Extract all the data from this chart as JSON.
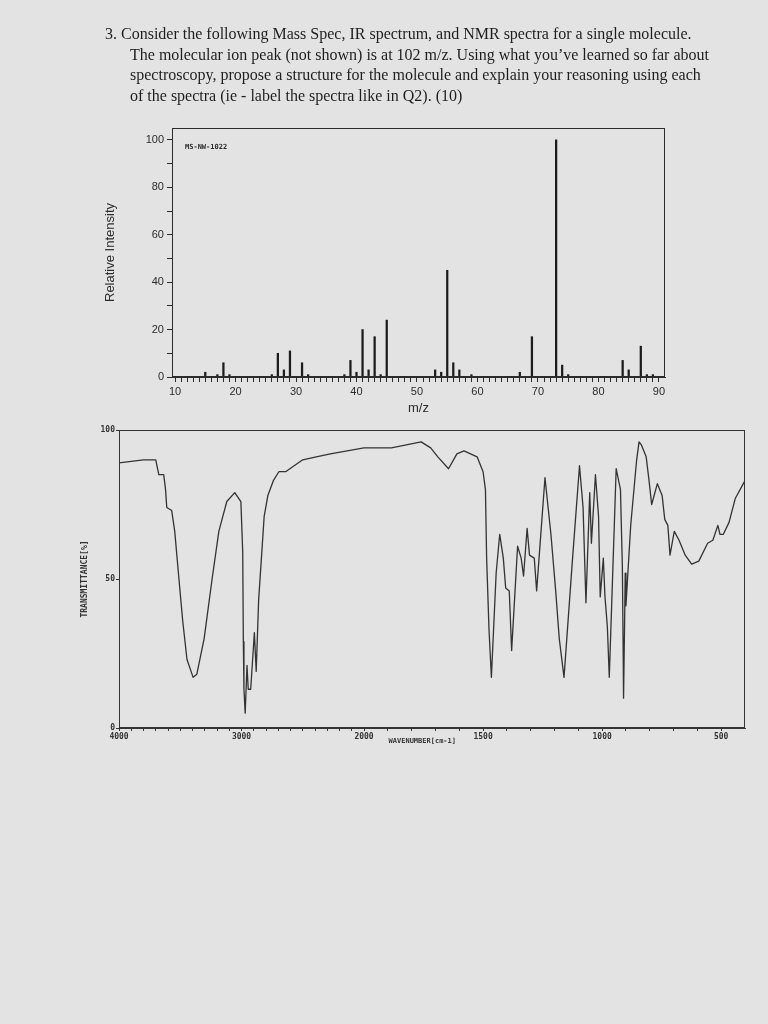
{
  "chart_data": [
    {
      "type": "bar",
      "title": "3. Consider the following Mass Spec, IR spectrum, and NMR spectra for a single molecule. The molecular ion peak (not shown) is at 102 m/z. Using what you’ve learned so far about spectroscopy, propose a structure for the molecule and explain your reasoning using each of the spectra (ie - label the spectra like in Q2). (10)",
      "annotations": [
        "MS-NW-1022"
      ],
      "xlabel": "m/z",
      "ylabel": "Relative Intensity",
      "color": "#1c1c1c",
      "x": [
        15,
        17,
        18,
        19,
        26,
        27,
        28,
        29,
        31,
        32,
        38,
        39,
        40,
        41,
        42,
        43,
        44,
        45,
        53,
        54,
        55,
        56,
        57,
        59,
        67,
        69,
        73,
        74,
        75,
        84,
        85,
        87,
        88,
        89
      ],
      "values": [
        2,
        1,
        6,
        1,
        1,
        10,
        3,
        11,
        6,
        1,
        1,
        7,
        2,
        20,
        3,
        17,
        1,
        24,
        3,
        2,
        45,
        6,
        3,
        1,
        2,
        17,
        100,
        5,
        1,
        7,
        3,
        13,
        1,
        1
      ],
      "xlim": [
        9.5,
        91
      ],
      "xticks": [
        10,
        {
          "value": 11,
          "label": null
        },
        {
          "value": 12,
          "label": null
        },
        {
          "value": 13,
          "label": null
        },
        {
          "value": 14,
          "label": null
        },
        {
          "value": 15,
          "label": null
        },
        {
          "value": 16,
          "label": null
        },
        {
          "value": 17,
          "label": null
        },
        {
          "value": 18,
          "label": null
        },
        {
          "value": 19,
          "label": null
        },
        20,
        {
          "value": 21,
          "label": null
        },
        {
          "value": 22,
          "label": null
        },
        {
          "value": 23,
          "label": null
        },
        {
          "value": 24,
          "label": null
        },
        {
          "value": 25,
          "label": null
        },
        {
          "value": 26,
          "label": null
        },
        {
          "value": 27,
          "label": null
        },
        {
          "value": 28,
          "label": null
        },
        {
          "value": 29,
          "label": null
        },
        30,
        {
          "value": 31,
          "label": null
        },
        {
          "value": 32,
          "label": null
        },
        {
          "value": 33,
          "label": null
        },
        {
          "value": 34,
          "label": null
        },
        {
          "value": 35,
          "label": null
        },
        {
          "value": 36,
          "label": null
        },
        {
          "value": 37,
          "label": null
        },
        {
          "value": 38,
          "label": null
        },
        {
          "value": 39,
          "label": null
        },
        40,
        {
          "value": 41,
          "label": null
        },
        {
          "value": 42,
          "label": null
        },
        {
          "value": 43,
          "label": null
        },
        {
          "value": 44,
          "label": null
        },
        {
          "value": 45,
          "label": null
        },
        {
          "value": 46,
          "label": null
        },
        {
          "value": 47,
          "label": null
        },
        {
          "value": 48,
          "label": null
        },
        {
          "value": 49,
          "label": null
        },
        50,
        {
          "value": 51,
          "label": null
        },
        {
          "value": 52,
          "label": null
        },
        {
          "value": 53,
          "label": null
        },
        {
          "value": 54,
          "label": null
        },
        {
          "value": 55,
          "label": null
        },
        {
          "value": 56,
          "label": null
        },
        {
          "value": 57,
          "label": null
        },
        {
          "value": 58,
          "label": null
        },
        {
          "value": 59,
          "label": null
        },
        60,
        {
          "value": 61,
          "label": null
        },
        {
          "value": 62,
          "label": null
        },
        {
          "value": 63,
          "label": null
        },
        {
          "value": 64,
          "label": null
        },
        {
          "value": 65,
          "label": null
        },
        {
          "value": 66,
          "label": null
        },
        {
          "value": 67,
          "label": null
        },
        {
          "value": 68,
          "label": null
        },
        {
          "value": 69,
          "label": null
        },
        70,
        {
          "value": 71,
          "label": null
        },
        {
          "value": 72,
          "label": null
        },
        {
          "value": 73,
          "label": null
        },
        {
          "value": 74,
          "label": null
        },
        {
          "value": 75,
          "label": null
        },
        {
          "value": 76,
          "label": null
        },
        {
          "value": 77,
          "label": null
        },
        {
          "value": 78,
          "label": null
        },
        {
          "value": 79,
          "label": null
        },
        80,
        {
          "value": 81,
          "label": null
        },
        {
          "value": 82,
          "label": null
        },
        {
          "value": 83,
          "label": null
        },
        {
          "value": 84,
          "label": null
        },
        {
          "value": 85,
          "label": null
        },
        {
          "value": 86,
          "label": null
        },
        {
          "value": 87,
          "label": null
        },
        {
          "value": 88,
          "label": null
        },
        {
          "value": 89,
          "label": null
        },
        90
      ],
      "ylim": [
        0,
        105
      ],
      "yticks": [
        0,
        {
          "value": 10,
          "label": null
        },
        20,
        {
          "value": 30,
          "label": null
        },
        40,
        {
          "value": 50,
          "label": null
        },
        60,
        {
          "value": 70,
          "label": null
        },
        80,
        {
          "value": 90,
          "label": null
        },
        100
      ]
    },
    {
      "type": "line",
      "ylabel": "TRANSMITTANCE[%]",
      "color": "#333333",
      "x": [
        4000,
        3800,
        3700,
        3675,
        3635,
        3620,
        3610,
        3570,
        3545,
        3515,
        3480,
        3445,
        3395,
        3365,
        3305,
        3240,
        3185,
        3120,
        3055,
        3005,
        2990,
        2985,
        2980,
        2970,
        2955,
        2945,
        2925,
        2895,
        2880,
        2860,
        2815,
        2785,
        2740,
        2695,
        2640,
        2500,
        2390,
        2275,
        2000
      ],
      "values": [
        89,
        90,
        90,
        85,
        85,
        80,
        74,
        73,
        66,
        52,
        36,
        23,
        17,
        18,
        30,
        50,
        66,
        76,
        79,
        76,
        59,
        29,
        13,
        5,
        21,
        13,
        13,
        32,
        19,
        43,
        71,
        78,
        83,
        86,
        86,
        90,
        91,
        92,
        94
      ],
      "xlim": [
        4000,
        2000
      ],
      "xticks": [
        4000,
        {
          "value": 3900,
          "label": null
        },
        {
          "value": 3800,
          "label": null
        },
        {
          "value": 3700,
          "label": null
        },
        {
          "value": 3600,
          "label": null
        },
        {
          "value": 3500,
          "label": null
        },
        {
          "value": 3400,
          "label": null
        },
        {
          "value": 3300,
          "label": null
        },
        {
          "value": 3200,
          "label": null
        },
        {
          "value": 3100,
          "label": null
        },
        3000,
        {
          "value": 2900,
          "label": null
        },
        {
          "value": 2800,
          "label": null
        },
        {
          "value": 2700,
          "label": null
        },
        {
          "value": 2600,
          "label": null
        },
        {
          "value": 2500,
          "label": null
        },
        {
          "value": 2400,
          "label": null
        },
        {
          "value": 2300,
          "label": null
        },
        {
          "value": 2200,
          "label": null
        },
        {
          "value": 2100,
          "label": null
        },
        2000
      ],
      "ylim": [
        0,
        100
      ],
      "yticks": [
        0,
        50,
        100
      ]
    },
    {
      "type": "line",
      "xlabel": "WAVENUMBER[cm-1]",
      "color": "#333333",
      "tick_labels": "x",
      "x": [
        2000,
        1885,
        1760,
        1720,
        1690,
        1645,
        1610,
        1580,
        1525,
        1500,
        1490,
        1485,
        1475,
        1465,
        1445,
        1430,
        1415,
        1405,
        1390,
        1380,
        1355,
        1340,
        1330,
        1315,
        1305,
        1285,
        1275,
        1240,
        1215,
        1195,
        1180,
        1160,
        1125,
        1095,
        1080,
        1068,
        1052,
        1045,
        1028,
        1015,
        1008,
        995,
        988,
        978,
        970,
        941,
        923,
        915,
        912,
        910,
        905,
        903,
        900,
        880,
        855,
        845,
        835,
        815,
        803,
        792,
        768,
        748,
        737,
        724,
        715,
        697,
        677,
        651,
        624,
        594,
        557,
        535,
        514,
        505,
        491,
        467,
        441,
        400
      ],
      "values": [
        94,
        94,
        96,
        94,
        91,
        87,
        92,
        93,
        91,
        86,
        80,
        57,
        33,
        17,
        52,
        65,
        57,
        47,
        46,
        26,
        61,
        57,
        51,
        67,
        58,
        57,
        46,
        84,
        65,
        46,
        30,
        17,
        56,
        88,
        74,
        42,
        79,
        62,
        85,
        71,
        44,
        57,
        44,
        34,
        17,
        87,
        80,
        54,
        29,
        10,
        39,
        52,
        41,
        68,
        90,
        96,
        95,
        91,
        83,
        75,
        82,
        78,
        70,
        68,
        58,
        66,
        63,
        58,
        55,
        56,
        62,
        63,
        68,
        65,
        65,
        69,
        77,
        83
      ],
      "xlim": [
        2000,
        400
      ],
      "xticks": [
        {
          "value": 1900,
          "label": null
        },
        {
          "value": 1800,
          "label": null
        },
        {
          "value": 1700,
          "label": null
        },
        {
          "value": 1600,
          "label": null
        },
        1500,
        {
          "value": 1400,
          "label": null
        },
        {
          "value": 1300,
          "label": null
        },
        {
          "value": 1200,
          "label": null
        },
        {
          "value": 1100,
          "label": null
        },
        1000,
        {
          "value": 900,
          "label": null
        },
        {
          "value": 800,
          "label": null
        },
        {
          "value": 700,
          "label": null
        },
        {
          "value": 600,
          "label": null
        },
        500
      ],
      "ylim": [
        0,
        100
      ]
    }
  ]
}
